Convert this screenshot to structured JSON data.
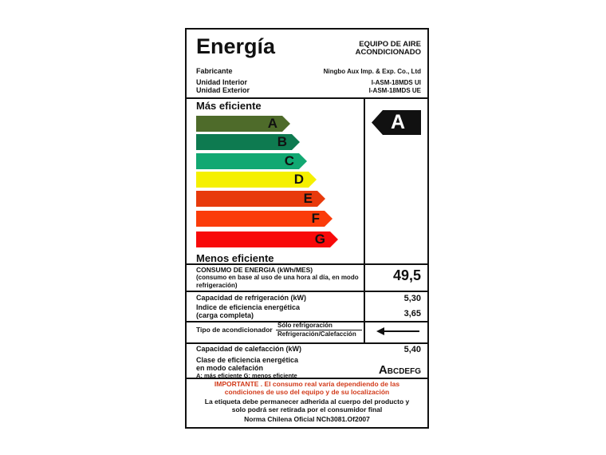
{
  "header": {
    "title": "Energía",
    "product_type_1": "EQUIPO DE AIRE",
    "product_type_2": "ACONDICIONADO",
    "manufacturer_label": "Fabricante",
    "manufacturer": "Ningbo Aux Imp. & Exp. Co., Ltd",
    "indoor_label": "Unidad Interior",
    "indoor": "I-ASM-18MDS UI",
    "outdoor_label": "Unidad Exterior",
    "outdoor": "I-ASM-18MDS UE"
  },
  "scale": {
    "top_label": "Más eficiente",
    "bottom_label": "Menos eficiente",
    "rating": "A",
    "classes": [
      {
        "letter": "A",
        "color": "#4e6b2a"
      },
      {
        "letter": "B",
        "color": "#0e7a50"
      },
      {
        "letter": "C",
        "color": "#12a872"
      },
      {
        "letter": "D",
        "color": "#f5f000"
      },
      {
        "letter": "E",
        "color": "#e83a0c"
      },
      {
        "letter": "F",
        "color": "#fb3c0a"
      },
      {
        "letter": "G",
        "color": "#f80a0a"
      }
    ]
  },
  "consumption": {
    "label": "CONSUMO DE ENERGIA  (kWh/MES)",
    "note": "(consumo   en base al uso  de una hora al día, en modo refrigeración)",
    "value": "49,5"
  },
  "cooling": {
    "capacity_label": "Capacidad de refrigeración (kW)",
    "capacity": "5,30",
    "eer_label_1": "Indice de eficiencia energética",
    "eer_label_2": "(carga completa)",
    "eer": "3,65"
  },
  "type": {
    "label": "Tipo de acondicionador",
    "option_1": "Sólo refrigoración",
    "option_2": "Refrigeración/Calefacción"
  },
  "heating": {
    "capacity_label": "Capacidad de calefacción (kW)",
    "capacity": "5,40",
    "class_label_1": "Clase de eficiencia energética",
    "class_label_2": "en modo calefación",
    "class_note": "A: más eficiente  G: menos eficiente",
    "class_first": "A",
    "class_rest": "BCDEFG"
  },
  "footer": {
    "important": "IMPORTANTE  .  El consumo  real varía dependiendo de las condiciones  de uso del equipo y de su localización",
    "notice": "La etiqueta debe permanecer adherida al cuerpo del producto y solo podrá ser retirada por el consumidor final",
    "norm": "Norma Chilena Oficial NCh3081.Of2007"
  }
}
